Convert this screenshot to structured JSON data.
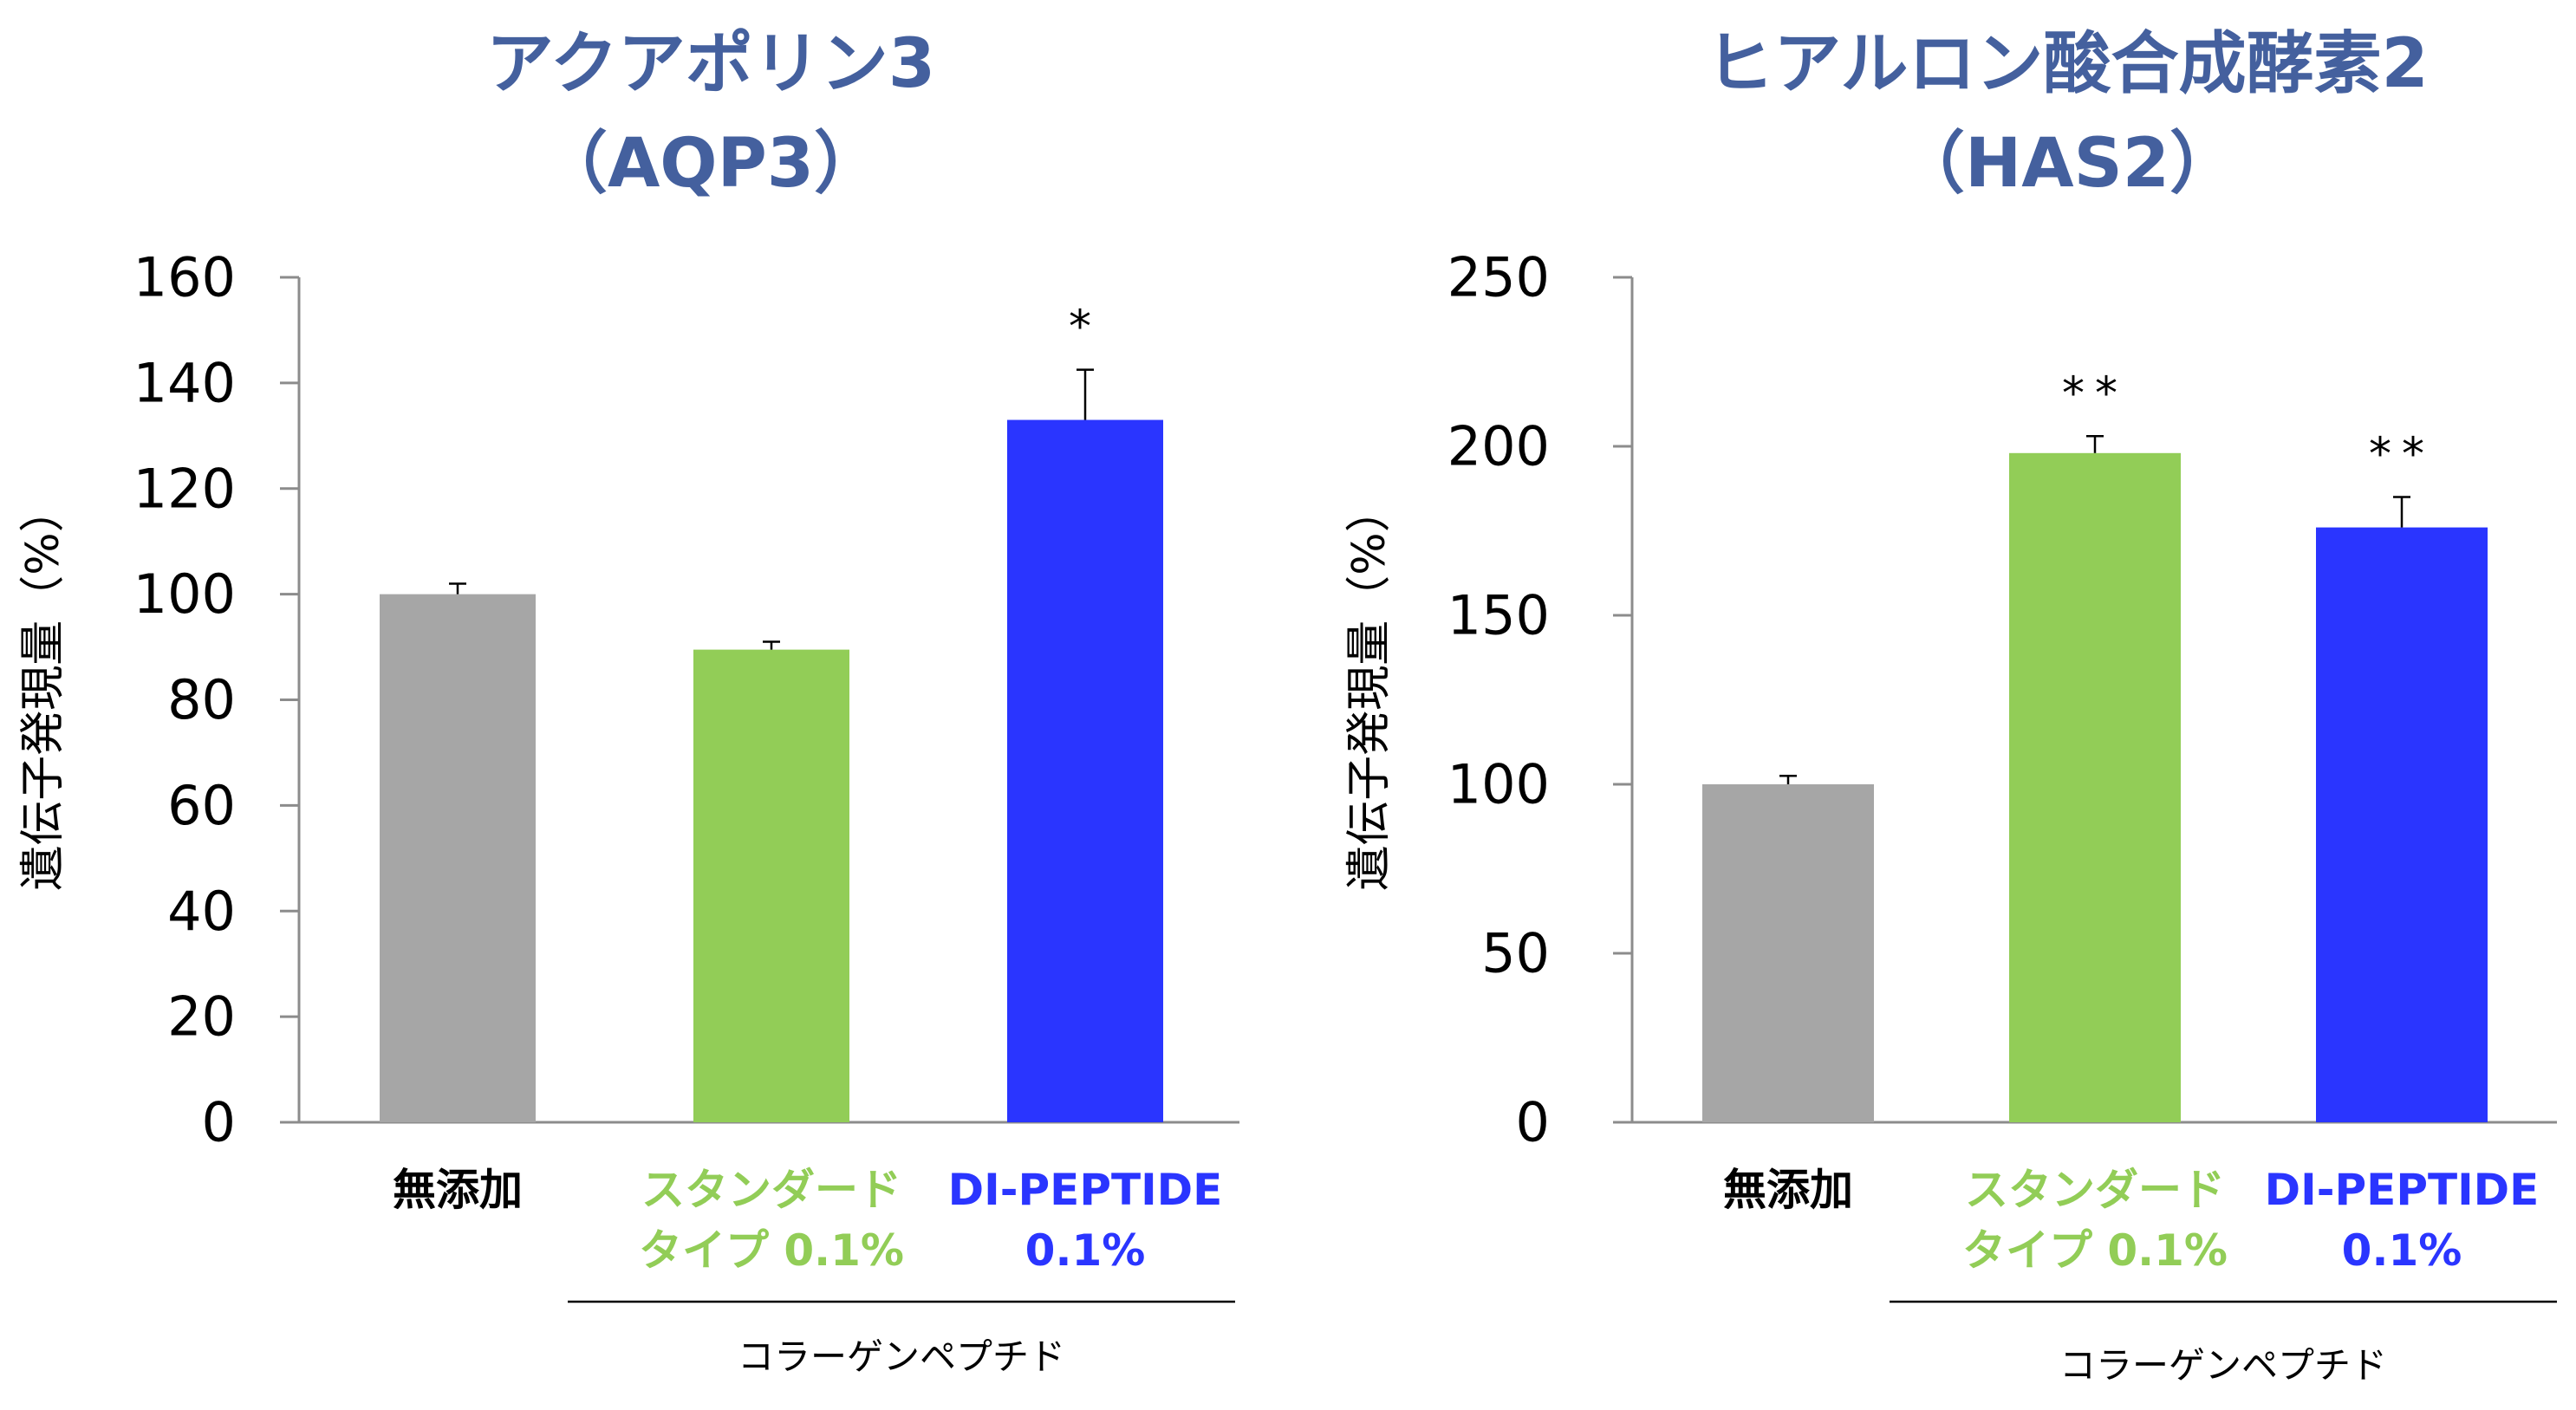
{
  "chart_data": [
    {
      "type": "bar",
      "title_lines": [
        "アクアポリン3",
        "（AQP3）"
      ],
      "ylabel": "遺伝子発現量（%）",
      "ylim": [
        0,
        160
      ],
      "yticks": [
        0,
        20,
        40,
        60,
        80,
        100,
        120,
        140,
        160
      ],
      "categories": [
        {
          "lines": [
            "無添加"
          ],
          "color": "#000000"
        },
        {
          "lines": [
            "スタンダード",
            "タイプ 0.1%"
          ],
          "color": "#92CD57"
        },
        {
          "lines": [
            "DI-PEPTIDE",
            "0.1%"
          ],
          "color": "#2A35FF"
        }
      ],
      "values": [
        100,
        89.5,
        133
      ],
      "errors": [
        2,
        1.5,
        9.5
      ],
      "bar_colors": [
        "#A6A6A6",
        "#92CD57",
        "#2A35FF"
      ],
      "significance": [
        "",
        "",
        "*"
      ],
      "group_label": "コラーゲンペプチド"
    },
    {
      "type": "bar",
      "title_lines": [
        "ヒアルロン酸合成酵素2",
        "（HAS2）"
      ],
      "ylabel": "遺伝子発現量（%）",
      "ylim": [
        0,
        250
      ],
      "yticks": [
        0,
        50,
        100,
        150,
        200,
        250
      ],
      "categories": [
        {
          "lines": [
            "無添加"
          ],
          "color": "#000000"
        },
        {
          "lines": [
            "スタンダード",
            "タイプ 0.1%"
          ],
          "color": "#92CD57"
        },
        {
          "lines": [
            "DI-PEPTIDE",
            "0.1%"
          ],
          "color": "#2A35FF"
        }
      ],
      "values": [
        100,
        198,
        176
      ],
      "errors": [
        2.5,
        5,
        9
      ],
      "bar_colors": [
        "#A6A6A6",
        "#92CD57",
        "#2A35FF"
      ],
      "significance": [
        "",
        "**",
        "**"
      ],
      "group_label": "コラーゲンペプチド"
    }
  ],
  "title_color": "#44609E",
  "axis_color": "#8C8C8C"
}
